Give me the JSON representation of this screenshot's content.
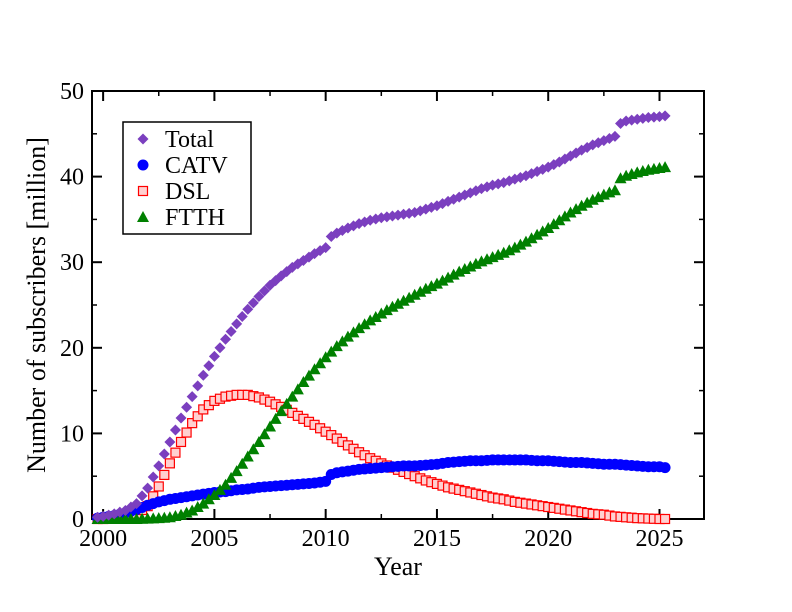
{
  "chart_data": {
    "type": "scatter",
    "xlabel": "Year",
    "ylabel": "Number of subscribers [million]",
    "xlim": [
      1999.5,
      2027
    ],
    "ylim": [
      0,
      50
    ],
    "xticks": [
      2000,
      2005,
      2010,
      2015,
      2020,
      2025
    ],
    "yticks": [
      0,
      10,
      20,
      30,
      40,
      50
    ],
    "xtick_labels": [
      "2000",
      "2005",
      "2010",
      "2015",
      "2020",
      "2025"
    ],
    "ytick_labels": [
      "0",
      "10",
      "20",
      "30",
      "40",
      "50"
    ],
    "grid": false,
    "legend_position": "top-left",
    "series": [
      {
        "name": "Total",
        "color": "#7B3FBF",
        "marker": "diamond",
        "points": [
          [
            1999.75,
            0.2
          ],
          [
            2000,
            0.3
          ],
          [
            2000.5,
            0.6
          ],
          [
            2001,
            1.0
          ],
          [
            2001.5,
            1.8
          ],
          [
            2002,
            3.6
          ],
          [
            2002.5,
            6.2
          ],
          [
            2003,
            9.0
          ],
          [
            2003.5,
            11.8
          ],
          [
            2004,
            14.3
          ],
          [
            2004.5,
            16.8
          ],
          [
            2005,
            19.0
          ],
          [
            2005.5,
            21.0
          ],
          [
            2006,
            22.8
          ],
          [
            2006.5,
            24.5
          ],
          [
            2007,
            26.0
          ],
          [
            2007.5,
            27.3
          ],
          [
            2008,
            28.4
          ],
          [
            2008.5,
            29.4
          ],
          [
            2009,
            30.2
          ],
          [
            2009.5,
            31.0
          ],
          [
            2010,
            31.7
          ],
          [
            2010.25,
            33.0
          ],
          [
            2010.5,
            33.4
          ],
          [
            2011,
            34.0
          ],
          [
            2011.5,
            34.5
          ],
          [
            2012,
            34.9
          ],
          [
            2012.5,
            35.2
          ],
          [
            2013,
            35.4
          ],
          [
            2013.5,
            35.6
          ],
          [
            2014,
            35.8
          ],
          [
            2014.5,
            36.2
          ],
          [
            2015,
            36.6
          ],
          [
            2015.5,
            37.1
          ],
          [
            2016,
            37.6
          ],
          [
            2016.5,
            38.1
          ],
          [
            2017,
            38.6
          ],
          [
            2017.5,
            39.0
          ],
          [
            2018,
            39.3
          ],
          [
            2018.5,
            39.7
          ],
          [
            2019,
            40.1
          ],
          [
            2019.5,
            40.6
          ],
          [
            2020,
            41.1
          ],
          [
            2020.5,
            41.7
          ],
          [
            2021,
            42.4
          ],
          [
            2021.5,
            43.1
          ],
          [
            2022,
            43.7
          ],
          [
            2022.5,
            44.2
          ],
          [
            2023,
            44.7
          ],
          [
            2023.25,
            46.2
          ],
          [
            2023.5,
            46.5
          ],
          [
            2024,
            46.7
          ],
          [
            2024.5,
            46.9
          ],
          [
            2025,
            47.0
          ],
          [
            2025.25,
            47.1
          ]
        ]
      },
      {
        "name": "CATV",
        "color": "#0000FF",
        "marker": "circle",
        "points": [
          [
            1999.75,
            0.1
          ],
          [
            2000,
            0.2
          ],
          [
            2000.5,
            0.4
          ],
          [
            2001,
            0.7
          ],
          [
            2001.5,
            1.1
          ],
          [
            2002,
            1.6
          ],
          [
            2002.5,
            2.0
          ],
          [
            2003,
            2.3
          ],
          [
            2003.5,
            2.5
          ],
          [
            2004,
            2.7
          ],
          [
            2004.5,
            2.9
          ],
          [
            2005,
            3.1
          ],
          [
            2005.5,
            3.2
          ],
          [
            2006,
            3.4
          ],
          [
            2006.5,
            3.5
          ],
          [
            2007,
            3.7
          ],
          [
            2007.5,
            3.8
          ],
          [
            2008,
            3.9
          ],
          [
            2008.5,
            4.0
          ],
          [
            2009,
            4.1
          ],
          [
            2009.5,
            4.2
          ],
          [
            2010,
            4.4
          ],
          [
            2010.25,
            5.2
          ],
          [
            2010.5,
            5.4
          ],
          [
            2011,
            5.6
          ],
          [
            2011.5,
            5.8
          ],
          [
            2012,
            5.9
          ],
          [
            2012.5,
            6.0
          ],
          [
            2013,
            6.1
          ],
          [
            2013.5,
            6.2
          ],
          [
            2014,
            6.2
          ],
          [
            2014.5,
            6.3
          ],
          [
            2015,
            6.4
          ],
          [
            2015.5,
            6.6
          ],
          [
            2016,
            6.7
          ],
          [
            2016.5,
            6.8
          ],
          [
            2017,
            6.8
          ],
          [
            2017.5,
            6.9
          ],
          [
            2018,
            6.9
          ],
          [
            2018.5,
            6.9
          ],
          [
            2019,
            6.9
          ],
          [
            2019.5,
            6.8
          ],
          [
            2020,
            6.8
          ],
          [
            2020.5,
            6.7
          ],
          [
            2021,
            6.6
          ],
          [
            2021.5,
            6.6
          ],
          [
            2022,
            6.5
          ],
          [
            2022.5,
            6.4
          ],
          [
            2023,
            6.4
          ],
          [
            2023.5,
            6.3
          ],
          [
            2024,
            6.2
          ],
          [
            2024.5,
            6.1
          ],
          [
            2025,
            6.1
          ],
          [
            2025.25,
            6.0
          ]
        ]
      },
      {
        "name": "DSL",
        "color": "#FF0000",
        "marker": "square",
        "points": [
          [
            1999.75,
            0.0
          ],
          [
            2000,
            0.0
          ],
          [
            2000.5,
            0.1
          ],
          [
            2001,
            0.2
          ],
          [
            2001.5,
            0.6
          ],
          [
            2002,
            1.5
          ],
          [
            2002.5,
            3.8
          ],
          [
            2003,
            6.5
          ],
          [
            2003.5,
            9.0
          ],
          [
            2004,
            11.2
          ],
          [
            2004.5,
            12.8
          ],
          [
            2005,
            13.8
          ],
          [
            2005.5,
            14.3
          ],
          [
            2006,
            14.5
          ],
          [
            2006.5,
            14.5
          ],
          [
            2007,
            14.2
          ],
          [
            2007.5,
            13.7
          ],
          [
            2008,
            13.1
          ],
          [
            2008.5,
            12.4
          ],
          [
            2009,
            11.7
          ],
          [
            2009.5,
            11.0
          ],
          [
            2010,
            10.2
          ],
          [
            2010.5,
            9.4
          ],
          [
            2011,
            8.6
          ],
          [
            2011.5,
            7.8
          ],
          [
            2012,
            7.1
          ],
          [
            2012.5,
            6.5
          ],
          [
            2013,
            6.0
          ],
          [
            2013.5,
            5.5
          ],
          [
            2014,
            5.0
          ],
          [
            2014.5,
            4.5
          ],
          [
            2015,
            4.1
          ],
          [
            2015.5,
            3.7
          ],
          [
            2016,
            3.4
          ],
          [
            2016.5,
            3.1
          ],
          [
            2017,
            2.8
          ],
          [
            2017.5,
            2.5
          ],
          [
            2018,
            2.3
          ],
          [
            2018.5,
            2.0
          ],
          [
            2019,
            1.8
          ],
          [
            2019.5,
            1.6
          ],
          [
            2020,
            1.4
          ],
          [
            2020.5,
            1.2
          ],
          [
            2021,
            1.0
          ],
          [
            2021.5,
            0.8
          ],
          [
            2022,
            0.6
          ],
          [
            2022.5,
            0.5
          ],
          [
            2023,
            0.3
          ],
          [
            2023.5,
            0.2
          ],
          [
            2024,
            0.1
          ],
          [
            2024.5,
            0.05
          ],
          [
            2025,
            0.0
          ],
          [
            2025.25,
            0.0
          ]
        ]
      },
      {
        "name": "FTTH",
        "color": "#008000",
        "marker": "triangle",
        "points": [
          [
            1999.75,
            0.0
          ],
          [
            2000,
            0.0
          ],
          [
            2000.5,
            0.0
          ],
          [
            2001,
            0.0
          ],
          [
            2001.5,
            0.0
          ],
          [
            2002,
            0.05
          ],
          [
            2002.5,
            0.1
          ],
          [
            2003,
            0.2
          ],
          [
            2003.5,
            0.5
          ],
          [
            2004,
            1.0
          ],
          [
            2004.5,
            1.8
          ],
          [
            2005,
            2.8
          ],
          [
            2005.5,
            4.0
          ],
          [
            2006,
            5.6
          ],
          [
            2006.5,
            7.3
          ],
          [
            2007,
            9.0
          ],
          [
            2007.5,
            10.8
          ],
          [
            2008,
            12.6
          ],
          [
            2008.5,
            14.3
          ],
          [
            2009,
            16.0
          ],
          [
            2009.5,
            17.5
          ],
          [
            2010,
            18.9
          ],
          [
            2010.5,
            20.2
          ],
          [
            2011,
            21.3
          ],
          [
            2011.5,
            22.3
          ],
          [
            2012,
            23.2
          ],
          [
            2012.5,
            24.0
          ],
          [
            2013,
            24.8
          ],
          [
            2013.5,
            25.5
          ],
          [
            2014,
            26.2
          ],
          [
            2014.5,
            26.9
          ],
          [
            2015,
            27.5
          ],
          [
            2015.5,
            28.2
          ],
          [
            2016,
            28.9
          ],
          [
            2016.5,
            29.5
          ],
          [
            2017,
            30.1
          ],
          [
            2017.5,
            30.6
          ],
          [
            2018,
            31.1
          ],
          [
            2018.5,
            31.7
          ],
          [
            2019,
            32.4
          ],
          [
            2019.5,
            33.2
          ],
          [
            2020,
            34.0
          ],
          [
            2020.5,
            34.9
          ],
          [
            2021,
            35.8
          ],
          [
            2021.5,
            36.6
          ],
          [
            2022,
            37.3
          ],
          [
            2022.5,
            37.9
          ],
          [
            2023,
            38.4
          ],
          [
            2023.25,
            39.8
          ],
          [
            2023.5,
            40.1
          ],
          [
            2024,
            40.5
          ],
          [
            2024.5,
            40.8
          ],
          [
            2025,
            41.0
          ],
          [
            2025.25,
            41.1
          ]
        ]
      }
    ]
  }
}
